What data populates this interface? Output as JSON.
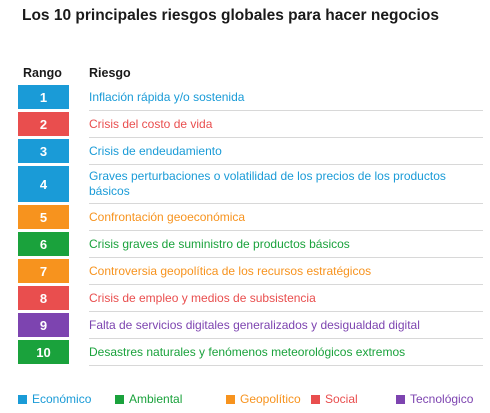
{
  "title": "Los 10 principales riesgos globales para hacer negocios",
  "headers": {
    "rank": "Rango",
    "risk": "Riesgo"
  },
  "colors": {
    "economico": "#1a9bd7",
    "ambiental": "#1aa23c",
    "geopolitico": "#f7931e",
    "social": "#e94e4e",
    "tecnologico": "#7d44b0"
  },
  "risks": [
    {
      "rank": "1",
      "label": "Inflación rápida y/o sostenida",
      "category": "economico"
    },
    {
      "rank": "2",
      "label": "Crisis del costo de vida",
      "category": "social"
    },
    {
      "rank": "3",
      "label": "Crisis de endeudamiento",
      "category": "economico"
    },
    {
      "rank": "4",
      "label": "Graves perturbaciones o volatilidad de los precios de los productos básicos",
      "category": "economico"
    },
    {
      "rank": "5",
      "label": "Confrontación geoeconómica",
      "category": "geopolitico"
    },
    {
      "rank": "6",
      "label": "Crisis graves de suministro de productos básicos",
      "category": "ambiental"
    },
    {
      "rank": "7",
      "label": "Controversia geopolítica de los recursos estratégicos",
      "category": "geopolitico"
    },
    {
      "rank": "8",
      "label": "Crisis de empleo y medios de subsistencia",
      "category": "social"
    },
    {
      "rank": "9",
      "label": "Falta de servicios digitales generalizados y desigualdad digital",
      "category": "tecnologico"
    },
    {
      "rank": "10",
      "label": "Desastres naturales y fenómenos meteorológicos extremos",
      "category": "ambiental"
    }
  ],
  "legend": [
    {
      "key": "economico",
      "label": "Económico"
    },
    {
      "key": "ambiental",
      "label": "Ambiental"
    },
    {
      "key": "geopolitico",
      "label": "Geopolítico"
    },
    {
      "key": "social",
      "label": "Social"
    },
    {
      "key": "tecnologico",
      "label": "Tecnológico"
    }
  ]
}
